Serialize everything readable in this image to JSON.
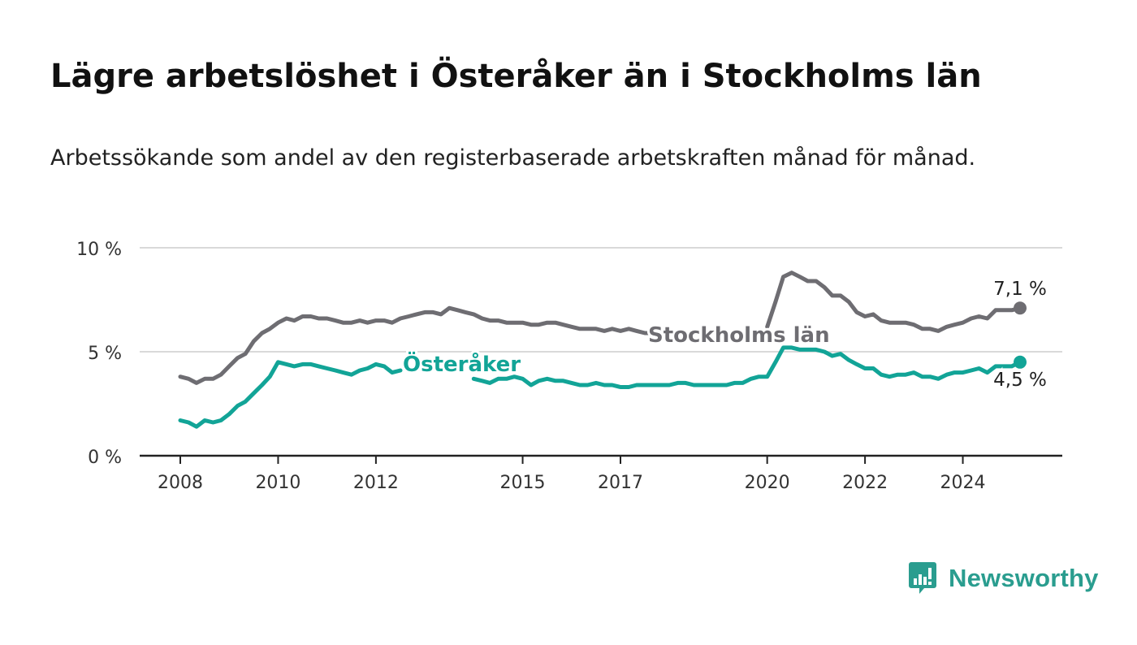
{
  "title": "Lägre arbetslöshet i Österåker än i Stockholms län",
  "subtitle": "Arbetssökande som andel av den registerbaserade arbetskraften månad för månad.",
  "brand": {
    "name": "Newsworthy",
    "icon": "newsworthy-logo-icon",
    "color": "#2a9d8f"
  },
  "chart_data": {
    "type": "line",
    "ylim": [
      0,
      10
    ],
    "xlim": [
      2008,
      2026.6
    ],
    "y_ticks": [
      {
        "value": 0,
        "label": "0 %"
      },
      {
        "value": 5,
        "label": "5 %"
      },
      {
        "value": 10,
        "label": "10 %"
      }
    ],
    "x_ticks": [
      {
        "value": 2008,
        "label": "2008"
      },
      {
        "value": 2010,
        "label": "2010"
      },
      {
        "value": 2012,
        "label": "2012"
      },
      {
        "value": 2015,
        "label": "2015"
      },
      {
        "value": 2017,
        "label": "2017"
      },
      {
        "value": 2020,
        "label": "2020"
      },
      {
        "value": 2022,
        "label": "2022"
      },
      {
        "value": 2024,
        "label": "2024"
      }
    ],
    "grid": true,
    "series": [
      {
        "name": "Stockholms län",
        "color": "#6e6d72",
        "end_label": "7,1 %",
        "points": [
          [
            2008.0,
            3.8
          ],
          [
            2008.17,
            3.7
          ],
          [
            2008.33,
            3.5
          ],
          [
            2008.5,
            3.7
          ],
          [
            2008.67,
            3.7
          ],
          [
            2008.83,
            3.9
          ],
          [
            2009.0,
            4.3
          ],
          [
            2009.17,
            4.7
          ],
          [
            2009.33,
            4.9
          ],
          [
            2009.5,
            5.5
          ],
          [
            2009.67,
            5.9
          ],
          [
            2009.83,
            6.1
          ],
          [
            2010.0,
            6.4
          ],
          [
            2010.17,
            6.6
          ],
          [
            2010.33,
            6.5
          ],
          [
            2010.5,
            6.7
          ],
          [
            2010.67,
            6.7
          ],
          [
            2010.83,
            6.6
          ],
          [
            2011.0,
            6.6
          ],
          [
            2011.17,
            6.5
          ],
          [
            2011.33,
            6.4
          ],
          [
            2011.5,
            6.4
          ],
          [
            2011.67,
            6.5
          ],
          [
            2011.83,
            6.4
          ],
          [
            2012.0,
            6.5
          ],
          [
            2012.17,
            6.5
          ],
          [
            2012.33,
            6.4
          ],
          [
            2012.5,
            6.6
          ],
          [
            2012.67,
            6.7
          ],
          [
            2012.83,
            6.8
          ],
          [
            2013.0,
            6.9
          ],
          [
            2013.17,
            6.9
          ],
          [
            2013.33,
            6.8
          ],
          [
            2013.5,
            7.1
          ],
          [
            2013.67,
            7.0
          ],
          [
            2013.83,
            6.9
          ],
          [
            2014.0,
            6.8
          ],
          [
            2014.17,
            6.6
          ],
          [
            2014.33,
            6.5
          ],
          [
            2014.5,
            6.5
          ],
          [
            2014.67,
            6.4
          ],
          [
            2014.83,
            6.4
          ],
          [
            2015.0,
            6.4
          ],
          [
            2015.17,
            6.3
          ],
          [
            2015.33,
            6.3
          ],
          [
            2015.5,
            6.4
          ],
          [
            2015.67,
            6.4
          ],
          [
            2015.83,
            6.3
          ],
          [
            2016.0,
            6.2
          ],
          [
            2016.17,
            6.1
          ],
          [
            2016.33,
            6.1
          ],
          [
            2016.5,
            6.1
          ],
          [
            2016.67,
            6.0
          ],
          [
            2016.83,
            6.1
          ],
          [
            2017.0,
            6.0
          ],
          [
            2017.17,
            6.1
          ],
          [
            2017.33,
            6.0
          ],
          [
            2017.5,
            5.9
          ],
          [
            2017.67,
            5.9
          ],
          [
            2017.83,
            5.8
          ],
          [
            2018.0,
            5.8
          ],
          [
            2018.17,
            5.9
          ],
          [
            2018.33,
            5.9
          ],
          [
            2018.5,
            5.8
          ],
          [
            2018.67,
            5.8
          ],
          [
            2018.83,
            5.9
          ],
          [
            2019.0,
            5.9
          ],
          [
            2019.17,
            6.0
          ],
          [
            2019.33,
            6.0
          ],
          [
            2019.5,
            6.1
          ],
          [
            2019.67,
            6.1
          ],
          [
            2019.83,
            6.2
          ],
          [
            2020.0,
            6.2
          ],
          [
            2020.17,
            7.4
          ],
          [
            2020.33,
            8.6
          ],
          [
            2020.5,
            8.8
          ],
          [
            2020.67,
            8.6
          ],
          [
            2020.83,
            8.4
          ],
          [
            2021.0,
            8.4
          ],
          [
            2021.17,
            8.1
          ],
          [
            2021.33,
            7.7
          ],
          [
            2021.5,
            7.7
          ],
          [
            2021.67,
            7.4
          ],
          [
            2021.83,
            6.9
          ],
          [
            2022.0,
            6.7
          ],
          [
            2022.17,
            6.8
          ],
          [
            2022.33,
            6.5
          ],
          [
            2022.5,
            6.4
          ],
          [
            2022.67,
            6.4
          ],
          [
            2022.83,
            6.4
          ],
          [
            2023.0,
            6.3
          ],
          [
            2023.17,
            6.1
          ],
          [
            2023.33,
            6.1
          ],
          [
            2023.5,
            6.0
          ],
          [
            2023.67,
            6.2
          ],
          [
            2023.83,
            6.3
          ],
          [
            2024.0,
            6.4
          ],
          [
            2024.17,
            6.6
          ],
          [
            2024.33,
            6.7
          ],
          [
            2024.5,
            6.6
          ],
          [
            2024.67,
            7.0
          ],
          [
            2024.83,
            7.0
          ],
          [
            2025.0,
            7.0
          ],
          [
            2025.17,
            7.1
          ]
        ]
      },
      {
        "name": "Österåker",
        "color": "#12a497",
        "end_label": "4,5 %",
        "points": [
          [
            2008.0,
            1.7
          ],
          [
            2008.17,
            1.6
          ],
          [
            2008.33,
            1.4
          ],
          [
            2008.5,
            1.7
          ],
          [
            2008.67,
            1.6
          ],
          [
            2008.83,
            1.7
          ],
          [
            2009.0,
            2.0
          ],
          [
            2009.17,
            2.4
          ],
          [
            2009.33,
            2.6
          ],
          [
            2009.5,
            3.0
          ],
          [
            2009.67,
            3.4
          ],
          [
            2009.83,
            3.8
          ],
          [
            2010.0,
            4.5
          ],
          [
            2010.17,
            4.4
          ],
          [
            2010.33,
            4.3
          ],
          [
            2010.5,
            4.4
          ],
          [
            2010.67,
            4.4
          ],
          [
            2010.83,
            4.3
          ],
          [
            2011.0,
            4.2
          ],
          [
            2011.17,
            4.1
          ],
          [
            2011.33,
            4.0
          ],
          [
            2011.5,
            3.9
          ],
          [
            2011.67,
            4.1
          ],
          [
            2011.83,
            4.2
          ],
          [
            2012.0,
            4.4
          ],
          [
            2012.17,
            4.3
          ],
          [
            2012.33,
            4.0
          ],
          [
            2012.5,
            4.1
          ],
          [
            2012.67,
            4.0
          ],
          [
            2012.83,
            4.0
          ],
          [
            2013.0,
            3.9
          ],
          [
            2013.17,
            3.9
          ],
          [
            2013.33,
            3.8
          ],
          [
            2013.5,
            3.9
          ],
          [
            2013.67,
            3.8
          ],
          [
            2013.83,
            3.7
          ],
          [
            2014.0,
            3.7
          ],
          [
            2014.17,
            3.6
          ],
          [
            2014.33,
            3.5
          ],
          [
            2014.5,
            3.7
          ],
          [
            2014.67,
            3.7
          ],
          [
            2014.83,
            3.8
          ],
          [
            2015.0,
            3.7
          ],
          [
            2015.17,
            3.4
          ],
          [
            2015.33,
            3.6
          ],
          [
            2015.5,
            3.7
          ],
          [
            2015.67,
            3.6
          ],
          [
            2015.83,
            3.6
          ],
          [
            2016.0,
            3.5
          ],
          [
            2016.17,
            3.4
          ],
          [
            2016.33,
            3.4
          ],
          [
            2016.5,
            3.5
          ],
          [
            2016.67,
            3.4
          ],
          [
            2016.83,
            3.4
          ],
          [
            2017.0,
            3.3
          ],
          [
            2017.17,
            3.3
          ],
          [
            2017.33,
            3.4
          ],
          [
            2017.5,
            3.4
          ],
          [
            2017.67,
            3.4
          ],
          [
            2017.83,
            3.4
          ],
          [
            2018.0,
            3.4
          ],
          [
            2018.17,
            3.5
          ],
          [
            2018.33,
            3.5
          ],
          [
            2018.5,
            3.4
          ],
          [
            2018.67,
            3.4
          ],
          [
            2018.83,
            3.4
          ],
          [
            2019.0,
            3.4
          ],
          [
            2019.17,
            3.4
          ],
          [
            2019.33,
            3.5
          ],
          [
            2019.5,
            3.5
          ],
          [
            2019.67,
            3.7
          ],
          [
            2019.83,
            3.8
          ],
          [
            2020.0,
            3.8
          ],
          [
            2020.17,
            4.5
          ],
          [
            2020.33,
            5.2
          ],
          [
            2020.5,
            5.2
          ],
          [
            2020.67,
            5.1
          ],
          [
            2020.83,
            5.1
          ],
          [
            2021.0,
            5.1
          ],
          [
            2021.17,
            5.0
          ],
          [
            2021.33,
            4.8
          ],
          [
            2021.5,
            4.9
          ],
          [
            2021.67,
            4.6
          ],
          [
            2021.83,
            4.4
          ],
          [
            2022.0,
            4.2
          ],
          [
            2022.17,
            4.2
          ],
          [
            2022.33,
            3.9
          ],
          [
            2022.5,
            3.8
          ],
          [
            2022.67,
            3.9
          ],
          [
            2022.83,
            3.9
          ],
          [
            2023.0,
            4.0
          ],
          [
            2023.17,
            3.8
          ],
          [
            2023.33,
            3.8
          ],
          [
            2023.5,
            3.7
          ],
          [
            2023.67,
            3.9
          ],
          [
            2023.83,
            4.0
          ],
          [
            2024.0,
            4.0
          ],
          [
            2024.17,
            4.1
          ],
          [
            2024.33,
            4.2
          ],
          [
            2024.5,
            4.0
          ],
          [
            2024.67,
            4.3
          ],
          [
            2024.83,
            4.3
          ],
          [
            2025.0,
            4.3
          ],
          [
            2025.17,
            4.5
          ]
        ]
      }
    ]
  }
}
